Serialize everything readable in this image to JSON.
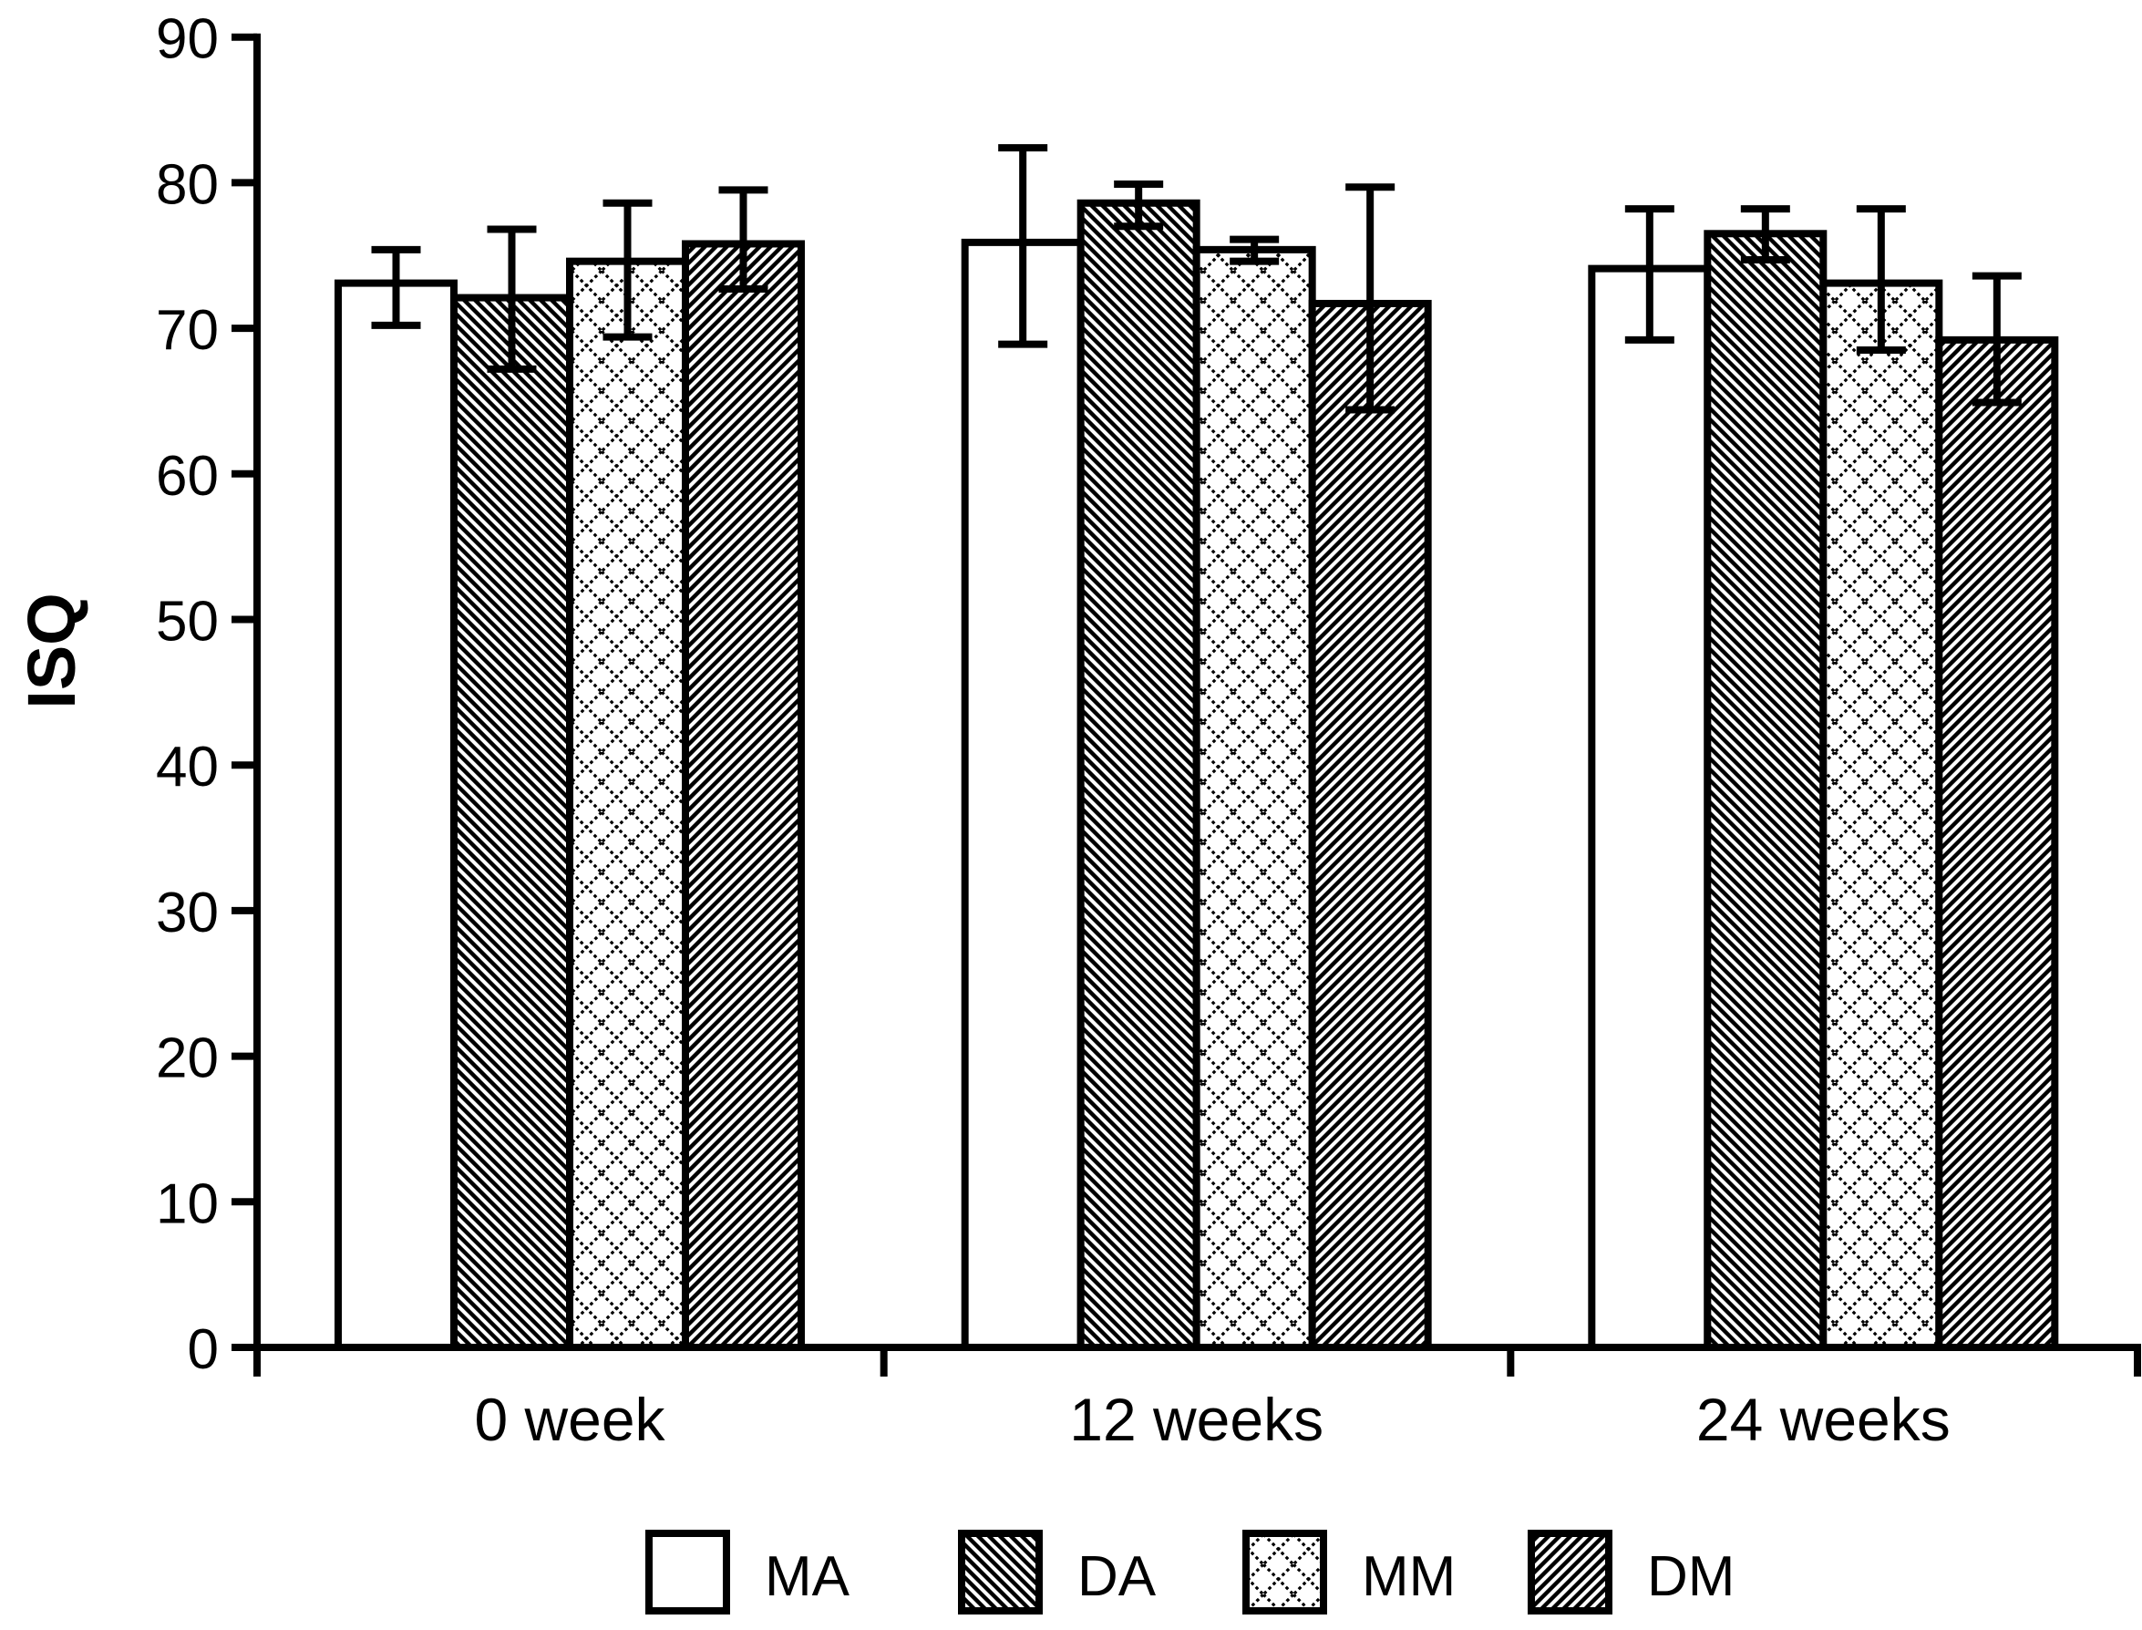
{
  "figure": {
    "background": "#ffffff",
    "ink": "#000000"
  },
  "chart_data": {
    "type": "bar",
    "title": "",
    "xlabel": "",
    "ylabel": "ISQ",
    "categories": [
      "0 week",
      "12 weeks",
      "24 weeks"
    ],
    "series": [
      {
        "name": "MA",
        "pattern": "plain",
        "values": [
          73.1,
          75.9,
          74.1
        ],
        "err_low": [
          70.2,
          68.9,
          69.2
        ],
        "err_high": [
          75.4,
          82.4,
          78.2
        ]
      },
      {
        "name": "DA",
        "pattern": "diag-back",
        "values": [
          72.1,
          78.6,
          76.5
        ],
        "err_low": [
          67.2,
          77.0,
          74.7
        ],
        "err_high": [
          76.8,
          79.9,
          78.2
        ]
      },
      {
        "name": "MM",
        "pattern": "diamond-cross",
        "values": [
          74.6,
          75.4,
          73.1
        ],
        "err_low": [
          69.4,
          74.6,
          68.5
        ],
        "err_high": [
          78.6,
          76.1,
          78.2
        ]
      },
      {
        "name": "DM",
        "pattern": "diag-fwd",
        "values": [
          75.8,
          71.7,
          69.2
        ],
        "err_low": [
          72.7,
          64.4,
          64.9
        ],
        "err_high": [
          79.5,
          79.7,
          73.6
        ]
      }
    ],
    "ylim": [
      0,
      90
    ],
    "ytick_step": 10,
    "ytick_labels": [
      "0",
      "10",
      "20",
      "30",
      "40",
      "50",
      "60",
      "70",
      "80",
      "90"
    ],
    "grid": false,
    "error_bars": true,
    "legend_position": "bottom"
  }
}
